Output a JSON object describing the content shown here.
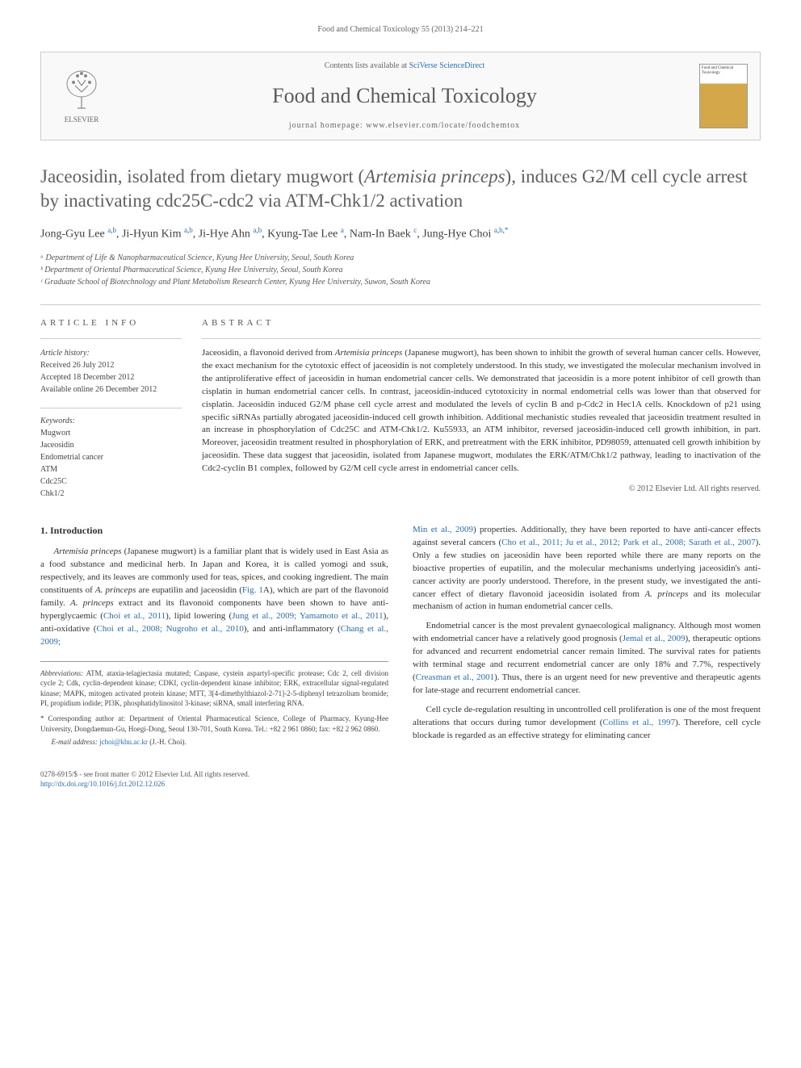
{
  "running_header": "Food and Chemical Toxicology 55 (2013) 214–221",
  "journal_header": {
    "contents_prefix": "Contents lists available at ",
    "contents_link": "SciVerse ScienceDirect",
    "journal_name": "Food and Chemical Toxicology",
    "homepage_prefix": "journal homepage: ",
    "homepage_url": "www.elsevier.com/locate/foodchemtox",
    "publisher_name": "ELSEVIER",
    "cover_text": "Food and Chemical Toxicology"
  },
  "title_html": "Jaceosidin, isolated from dietary mugwort (<em>Artemisia princeps</em>), induces G2/M cell cycle arrest by inactivating cdc25C-cdc2 via ATM-Chk1/2 activation",
  "authors_html": "Jong-Gyu Lee <sup><a>a</a>,<a>b</a></sup>, Ji-Hyun Kim <sup><a>a</a>,<a>b</a></sup>, Ji-Hye Ahn <sup><a>a</a>,<a>b</a></sup>, Kyung-Tae Lee <sup><a>a</a></sup>, Nam-In Baek <sup><a>c</a></sup>, Jung-Hye Choi <sup><a>a</a>,<a>b</a>,<a>*</a></sup>",
  "affiliations": [
    "ᵃ Department of Life & Nanopharmaceutical Science, Kyung Hee University, Seoul, South Korea",
    "ᵇ Department of Oriental Pharmaceutical Science, Kyung Hee University, Seoul, South Korea",
    "ᶜ Graduate School of Biotechnology and Plant Metabolism Research Center, Kyung Hee University, Suwon, South Korea"
  ],
  "article_info": {
    "heading": "ARTICLE INFO",
    "history_label": "Article history:",
    "received": "Received 26 July 2012",
    "accepted": "Accepted 18 December 2012",
    "online": "Available online 26 December 2012",
    "keywords_label": "Keywords:",
    "keywords": [
      "Mugwort",
      "Jaceosidin",
      "Endometrial cancer",
      "ATM",
      "Cdc25C",
      "Chk1/2"
    ]
  },
  "abstract": {
    "heading": "ABSTRACT",
    "text_html": "Jaceosidin, a flavonoid derived from <em>Artemisia princeps</em> (Japanese mugwort), has been shown to inhibit the growth of several human cancer cells. However, the exact mechanism for the cytotoxic effect of jaceosidin is not completely understood. In this study, we investigated the molecular mechanism involved in the antiproliferative effect of jaceosidin in human endometrial cancer cells. We demonstrated that jaceosidin is a more potent inhibitor of cell growth than cisplatin in human endometrial cancer cells. In contrast, jaceosidin-induced cytotoxicity in normal endometrial cells was lower than that observed for cisplatin. Jaceosidin induced G2/M phase cell cycle arrest and modulated the levels of cyclin B and p-Cdc2 in Hec1A cells. Knockdown of p21 using specific siRNAs partially abrogated jaceosidin-induced cell growth inhibition. Additional mechanistic studies revealed that jaceosidin treatment resulted in an increase in phosphorylation of Cdc25C and ATM-Chk1/2. Ku55933, an ATM inhibitor, reversed jaceosidin-induced cell growth inhibition, in part. Moreover, jaceosidin treatment resulted in phosphorylation of ERK, and pretreatment with the ERK inhibitor, PD98059, attenuated cell growth inhibition by jaceosidin. These data suggest that jaceosidin, isolated from Japanese mugwort, modulates the ERK/ATM/Chk1/2 pathway, leading to inactivation of the Cdc2-cyclin B1 complex, followed by G2/M cell cycle arrest in endometrial cancer cells.",
    "copyright": "© 2012 Elsevier Ltd. All rights reserved."
  },
  "section1": {
    "heading": "1. Introduction",
    "para1_html": "<em>Artemisia princeps</em> (Japanese mugwort) is a familiar plant that is widely used in East Asia as a food substance and medicinal herb. In Japan and Korea, it is called yomogi and ssuk, respectively, and its leaves are commonly used for teas, spices, and cooking ingredient. The main constituents of <em>A. princeps</em> are eupatilin and jaceosidin (<a>Fig. 1</a>A), which are part of the flavonoid family. <em>A. princeps</em> extract and its flavonoid components have been shown to have anti-hyperglycaemic (<a>Choi et al., 2011</a>), lipid lowering (<a>Jung et al., 2009; Yamamoto et al., 2011</a>), anti-oxidative (<a>Choi et al., 2008; Nugroho et al., 2010</a>), and anti-inflammatory (<a>Chang et al., 2009;</a>",
    "para2_html": "<a>Min et al., 2009</a>) properties. Additionally, they have been reported to have anti-cancer effects against several cancers (<a>Cho et al., 2011; Ju et al., 2012; Park et al., 2008; Sarath et al., 2007</a>). Only a few studies on jaceosidin have been reported while there are many reports on the bioactive properties of eupatilin, and the molecular mechanisms underlying jaceosidin's anti-cancer activity are poorly understood. Therefore, in the present study, we investigated the anti-cancer effect of dietary flavonoid jaceosidin isolated from <em>A. princeps</em> and its molecular mechanism of action in human endometrial cancer cells.",
    "para3_html": "Endometrial cancer is the most prevalent gynaecological malignancy. Although most women with endometrial cancer have a relatively good prognosis (<a>Jemal et al., 2009</a>), therapeutic options for advanced and recurrent endometrial cancer remain limited. The survival rates for patients with terminal stage and recurrent endometrial cancer are only 18% and 7.7%, respectively (<a>Creasman et al., 2001</a>). Thus, there is an urgent need for new preventive and therapeutic agents for late-stage and recurrent endometrial cancer.",
    "para4_html": "Cell cycle de-regulation resulting in uncontrolled cell proliferation is one of the most frequent alterations that occurs during tumor development (<a>Collins et al., 1997</a>). Therefore, cell cycle blockade is regarded as an effective strategy for eliminating cancer"
  },
  "footnotes": {
    "abbrev_html": "<em>Abbreviations:</em> ATM, ataxia-telagiectasia mutated; Caspase, cystein aspartyl-specific protease; Cdc 2, cell division cycle 2; Cdk, cyclin-dependent kinase; CDKI, cyclin-dependent kinase inhibitor; ERK, extracellular signal-regulated kinase; MAPK, mitogen activated protein kinase; MTT, 3[4-dimethylthiazol-2-71]-2-5-diphenyl tetrazolium bromide; PI, propidium iodide; PI3K, phosphatidylinositol 3-kinase; siRNA, small interfering RNA.",
    "corresponding_html": "* Corresponding author at: Department of Oriental Pharmaceutical Science, College of Pharmacy, Kyung-Hee University, Dongdaemun-Gu, Hoegi-Dong, Seoul 130-701, South Korea. Tel.: +82 2 961 0860; fax: +82 2 962 0860.",
    "email_html": "<em>E-mail address:</em> <a>jchoi@khu.ac.kr</a> (J.-H. Choi)."
  },
  "footer": {
    "issn_line": "0278-6915/$ - see front matter © 2012 Elsevier Ltd. All rights reserved.",
    "doi_line_html": "<a>http://dx.doi.org/10.1016/j.fct.2012.12.026</a>"
  },
  "colors": {
    "link": "#2a6ebb",
    "text": "#333333",
    "heading_gray": "#606060",
    "border": "#cccccc"
  }
}
